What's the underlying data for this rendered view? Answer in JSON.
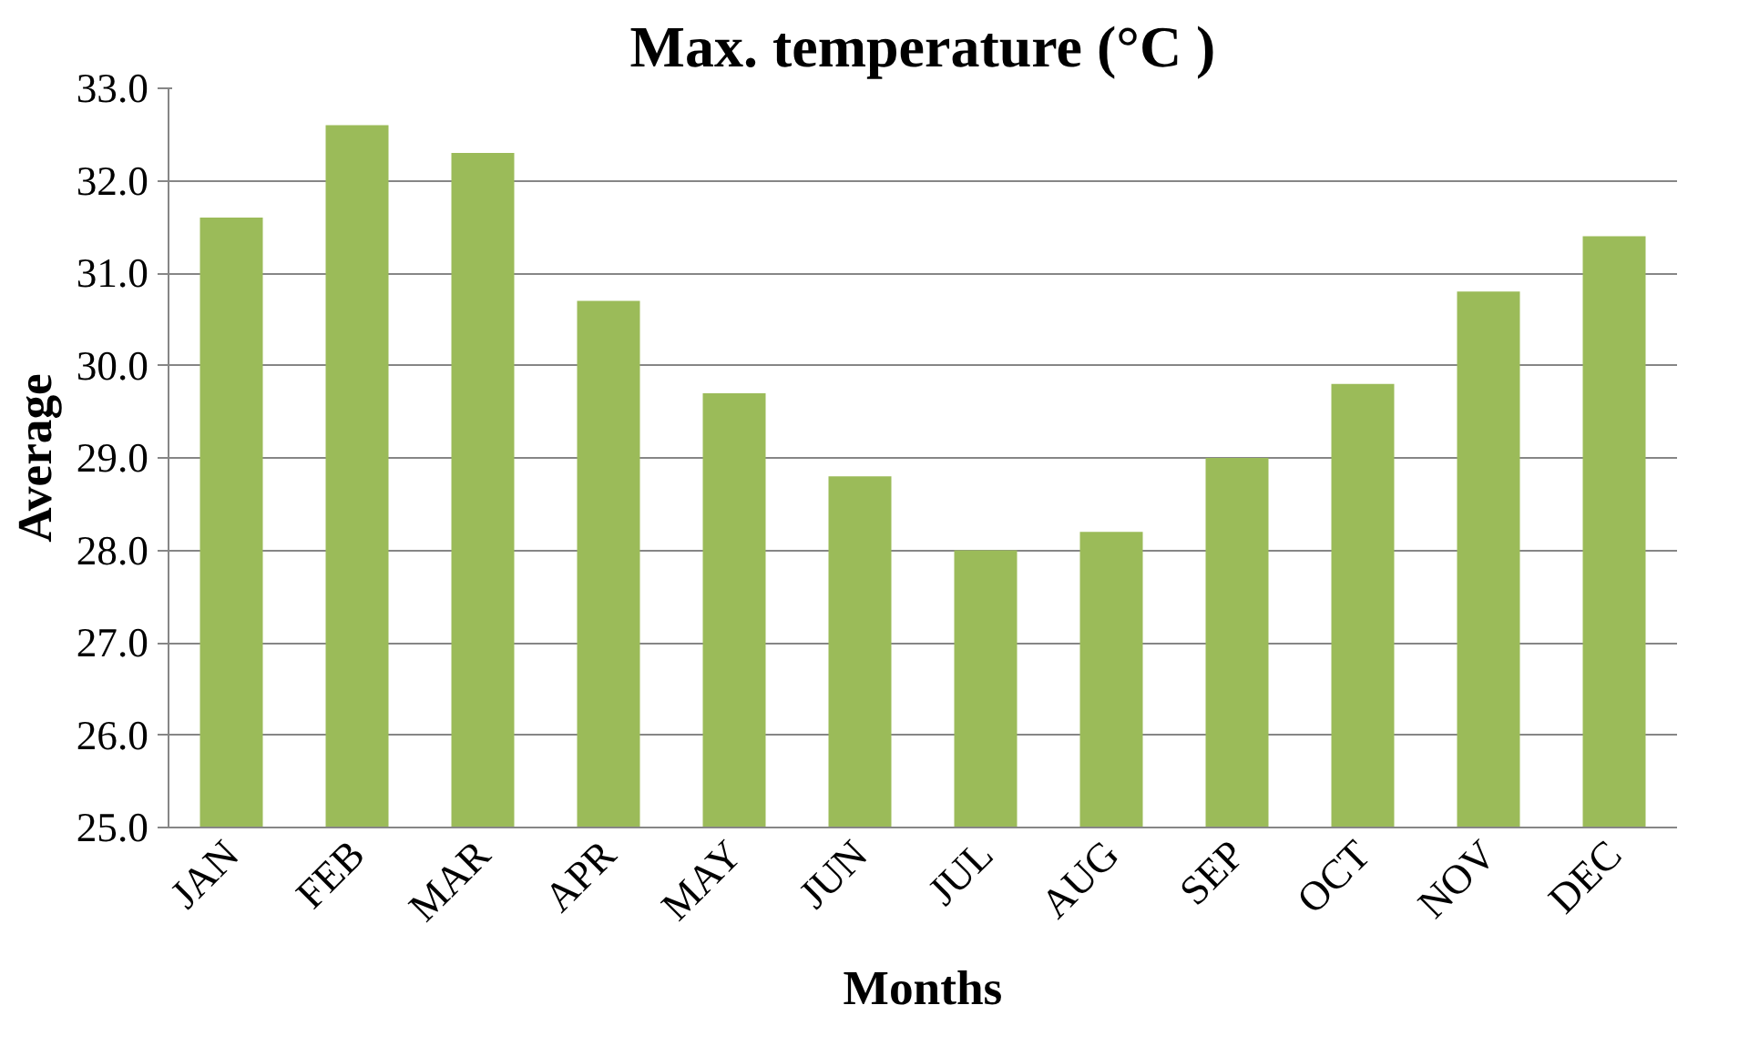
{
  "chart_data": {
    "type": "bar",
    "title": "Max. temperature (°C )",
    "xlabel": "Months",
    "ylabel": "Average",
    "categories": [
      "JAN",
      "FEB",
      "MAR",
      "APR",
      "MAY",
      "JUN",
      "JUL",
      "AUG",
      "SEP",
      "OCT",
      "NOV",
      "DEC"
    ],
    "values": [
      31.6,
      32.6,
      32.3,
      30.7,
      29.7,
      28.8,
      28.0,
      28.2,
      29.0,
      29.8,
      30.8,
      31.4
    ],
    "color": "#9bbb59",
    "ylim": [
      25,
      33
    ],
    "yticks": [
      {
        "value": 25,
        "label": "25.0"
      },
      {
        "value": 26,
        "label": "26.0"
      },
      {
        "value": 27,
        "label": "27.0"
      },
      {
        "value": 28,
        "label": "28.0"
      },
      {
        "value": 29,
        "label": "29.0"
      },
      {
        "value": 30,
        "label": "30.0"
      },
      {
        "value": 31,
        "label": "31.0"
      },
      {
        "value": 32,
        "label": "32.0"
      },
      {
        "value": 33,
        "label": "33.0"
      }
    ],
    "grid": "y"
  }
}
